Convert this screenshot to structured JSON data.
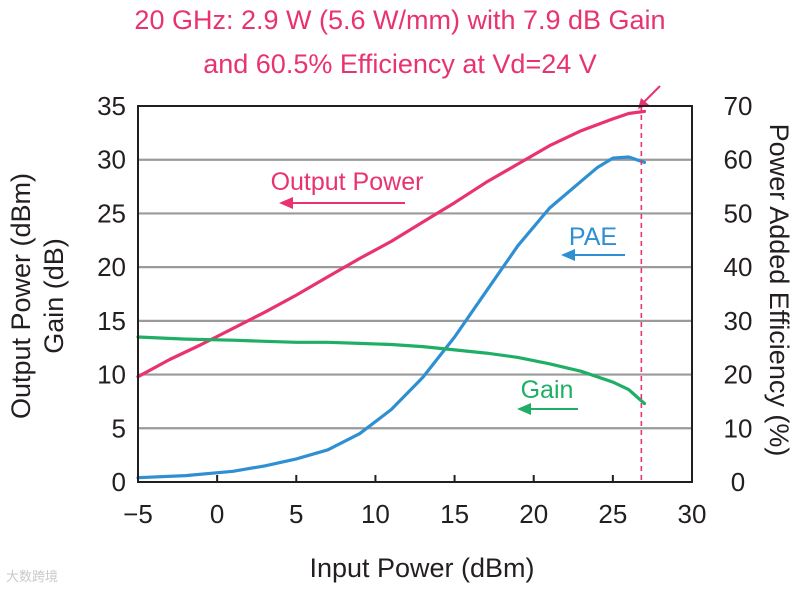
{
  "chart_data": {
    "type": "line",
    "title_lines": [
      "20 GHz: 2.9 W (5.6 W/mm) with 7.9 dB Gain",
      "and 60.5% Efficiency at Vd=24 V"
    ],
    "xlabel": "Input Power (dBm)",
    "ylabel_left_lines": [
      "Output Power (dBm)",
      "Gain (dB)"
    ],
    "ylabel_right": "Power Added Efficiency (%)",
    "xlim": [
      -5,
      30
    ],
    "ylim_left": [
      0,
      35
    ],
    "ylim_right": [
      0,
      70
    ],
    "x_ticks": [
      "−5",
      "0",
      "5",
      "10",
      "15",
      "20",
      "25",
      "30"
    ],
    "y_left_ticks": [
      "0",
      "5",
      "10",
      "15",
      "20",
      "25",
      "30",
      "35"
    ],
    "y_right_ticks": [
      "0",
      "10",
      "20",
      "30",
      "40",
      "50",
      "60",
      "70"
    ],
    "grid": true,
    "marker_x": 26.8,
    "series": [
      {
        "name": "Output Power",
        "axis": "left",
        "color": "#e8336e",
        "x": [
          -5,
          -3,
          -1,
          1,
          3,
          5,
          7,
          9,
          11,
          13,
          15,
          17,
          19,
          21,
          23,
          25,
          26,
          27
        ],
        "y": [
          9.8,
          11.4,
          12.8,
          14.3,
          15.8,
          17.4,
          19.1,
          20.8,
          22.4,
          24.2,
          26.0,
          27.9,
          29.6,
          31.3,
          32.7,
          33.8,
          34.3,
          34.5
        ]
      },
      {
        "name": "PAE",
        "axis": "right",
        "color": "#2f8fd3",
        "x": [
          -5,
          -2,
          1,
          3,
          5,
          7,
          9,
          11,
          13,
          15,
          17,
          19,
          21,
          23,
          24,
          25,
          26,
          27
        ],
        "y": [
          0.8,
          1.2,
          2.0,
          3.0,
          4.3,
          6.0,
          9.0,
          13.5,
          19.5,
          27.0,
          35.5,
          44.0,
          51.0,
          56.0,
          58.5,
          60.3,
          60.5,
          59.5
        ]
      },
      {
        "name": "Gain",
        "axis": "left",
        "color": "#1fae66",
        "x": [
          -5,
          -2,
          1,
          3,
          5,
          7,
          9,
          11,
          13,
          15,
          17,
          19,
          21,
          23,
          25,
          26,
          27
        ],
        "y": [
          13.5,
          13.3,
          13.2,
          13.1,
          13.0,
          13.0,
          12.9,
          12.8,
          12.6,
          12.3,
          12.0,
          11.6,
          11.0,
          10.3,
          9.3,
          8.6,
          7.3
        ]
      }
    ],
    "annotations": [
      {
        "text": "Output Power",
        "color": "#e8336e"
      },
      {
        "text": "PAE",
        "color": "#2f8fd3"
      },
      {
        "text": "Gain",
        "color": "#1fae66"
      }
    ],
    "colors": {
      "title": "#e8336e",
      "grid": "#9a9a9a",
      "frame": "#231f20",
      "marker_line": "#e8336e"
    }
  },
  "watermark": "大数跨境"
}
